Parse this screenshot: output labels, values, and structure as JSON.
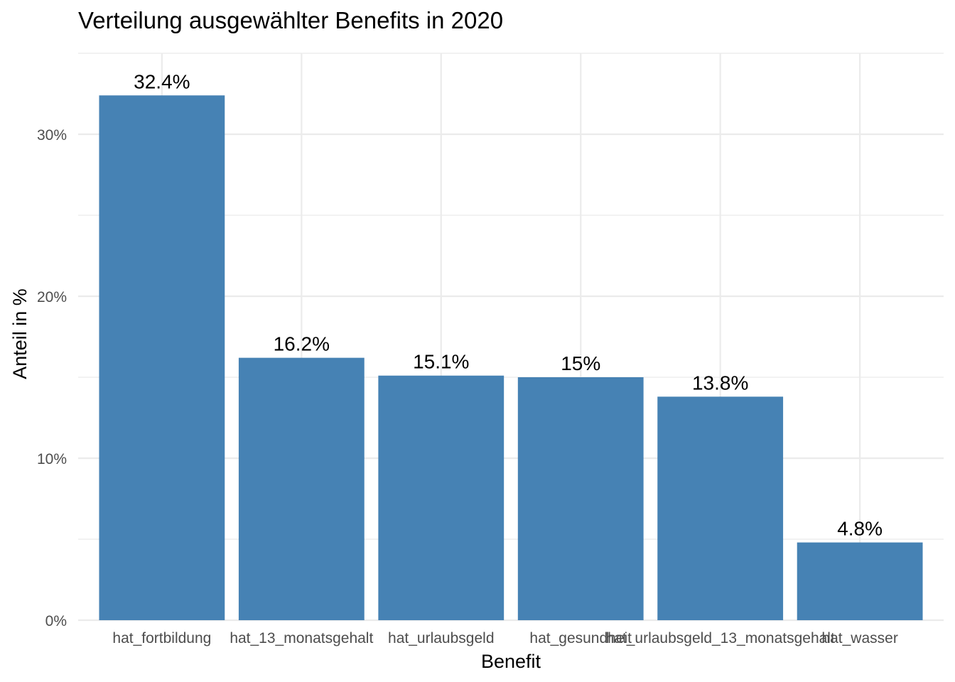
{
  "chart_data": {
    "type": "bar",
    "title": "Verteilung ausgewählter Benefits in 2020",
    "xlabel": "Benefit",
    "ylabel": "Anteil in %",
    "categories": [
      "hat_fortbildung",
      "hat_13_monatsgehalt",
      "hat_urlaubsgeld",
      "hat_gesundheit",
      "hat_urlaubsgeld_13_monatsgehalt",
      "hat_wasser"
    ],
    "values": [
      32.4,
      16.2,
      15.1,
      15.0,
      13.8,
      4.8
    ],
    "value_labels": [
      "32.4%",
      "16.2%",
      "15.1%",
      "15%",
      "13.8%",
      "4.8%"
    ],
    "yticks": [
      0,
      10,
      20,
      30
    ],
    "ytick_labels": [
      "0%",
      "10%",
      "20%",
      "30%"
    ],
    "ylim": [
      0,
      35
    ],
    "grid": true,
    "legend": "none",
    "colors": {
      "bar": "#4682B4",
      "grid": "#ebebeb"
    }
  }
}
